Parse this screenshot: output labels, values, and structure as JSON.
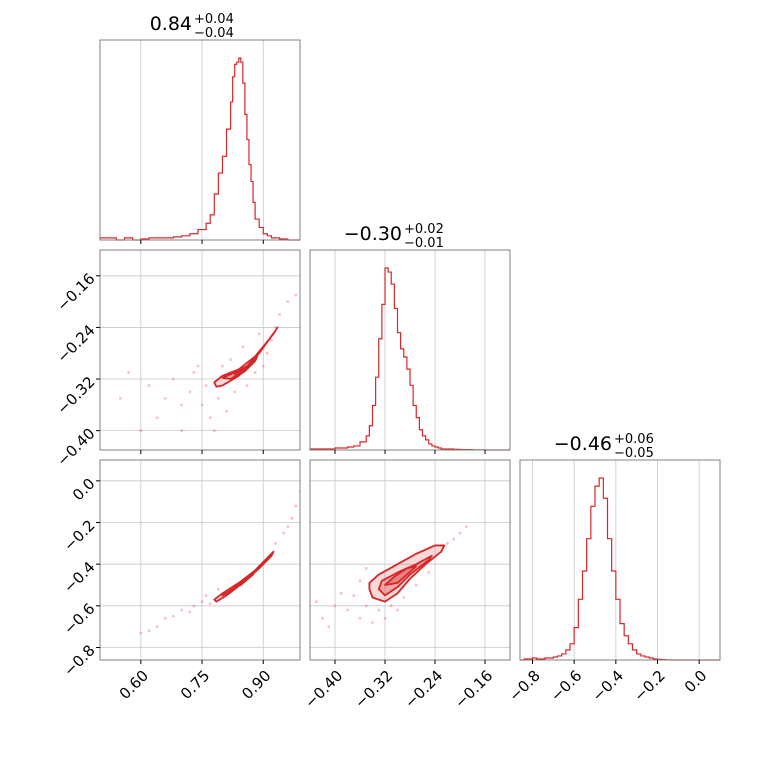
{
  "chart_data": {
    "type": "corner",
    "color": "#d62728",
    "parameters": [
      {
        "title": "0.84",
        "title_sup": "+0.04",
        "title_sub": "−0.04",
        "range": [
          0.5,
          0.99
        ],
        "ticks": [
          0.6,
          0.75,
          0.9
        ],
        "tick_labels": [
          "0.60",
          "0.75",
          "0.90"
        ],
        "histogram": {
          "bins": [
            0.5,
            0.52,
            0.54,
            0.56,
            0.58,
            0.6,
            0.62,
            0.64,
            0.66,
            0.68,
            0.7,
            0.72,
            0.74,
            0.76,
            0.77,
            0.78,
            0.79,
            0.8,
            0.81,
            0.82,
            0.825,
            0.83,
            0.835,
            0.84,
            0.845,
            0.85,
            0.855,
            0.86,
            0.865,
            0.87,
            0.875,
            0.88,
            0.89,
            0.9,
            0.91,
            0.92,
            0.94,
            0.96,
            0.99
          ],
          "counts": [
            0.01,
            0.01,
            0.0,
            0.01,
            0.0,
            0.005,
            0.01,
            0.01,
            0.01,
            0.015,
            0.02,
            0.03,
            0.05,
            0.08,
            0.12,
            0.22,
            0.32,
            0.4,
            0.53,
            0.66,
            0.78,
            0.84,
            0.85,
            0.87,
            0.85,
            0.75,
            0.6,
            0.48,
            0.36,
            0.28,
            0.18,
            0.1,
            0.06,
            0.03,
            0.02,
            0.01,
            0.005,
            0.0
          ]
        }
      },
      {
        "title": "−0.30",
        "title_sup": "+0.02",
        "title_sub": "−0.01",
        "range": [
          -0.44,
          -0.12
        ],
        "ticks": [
          -0.4,
          -0.32,
          -0.24,
          -0.16
        ],
        "tick_labels": [
          "−0.40",
          "−0.32",
          "−0.24",
          "−0.16"
        ],
        "histogram": {
          "bins": [
            -0.44,
            -0.43,
            -0.42,
            -0.41,
            -0.4,
            -0.39,
            -0.38,
            -0.37,
            -0.36,
            -0.35,
            -0.345,
            -0.34,
            -0.335,
            -0.33,
            -0.325,
            -0.32,
            -0.315,
            -0.31,
            -0.305,
            -0.3,
            -0.295,
            -0.29,
            -0.285,
            -0.28,
            -0.275,
            -0.27,
            -0.265,
            -0.26,
            -0.255,
            -0.25,
            -0.245,
            -0.24,
            -0.235,
            -0.23,
            -0.22,
            -0.21,
            -0.2,
            -0.18,
            -0.16,
            -0.12
          ],
          "counts": [
            0.005,
            0.005,
            0.005,
            0.005,
            0.01,
            0.01,
            0.015,
            0.02,
            0.04,
            0.07,
            0.12,
            0.22,
            0.36,
            0.55,
            0.72,
            0.9,
            0.88,
            0.82,
            0.7,
            0.58,
            0.5,
            0.46,
            0.4,
            0.32,
            0.22,
            0.16,
            0.1,
            0.07,
            0.05,
            0.03,
            0.02,
            0.015,
            0.01,
            0.005,
            0.005,
            0.003,
            0.002,
            0.001,
            0.0
          ]
        }
      },
      {
        "title": "−0.46",
        "title_sup": "+0.06",
        "title_sub": "−0.05",
        "range": [
          -0.86,
          0.1
        ],
        "ticks": [
          -0.8,
          -0.6,
          -0.4,
          -0.2,
          0.0
        ],
        "tick_labels": [
          "−0.8",
          "−0.6",
          "−0.4",
          "−0.2",
          "0.0"
        ],
        "histogram": {
          "bins": [
            -0.86,
            -0.84,
            -0.82,
            -0.8,
            -0.78,
            -0.76,
            -0.74,
            -0.72,
            -0.7,
            -0.68,
            -0.66,
            -0.64,
            -0.62,
            -0.6,
            -0.58,
            -0.56,
            -0.54,
            -0.52,
            -0.5,
            -0.48,
            -0.46,
            -0.44,
            -0.42,
            -0.4,
            -0.38,
            -0.36,
            -0.34,
            -0.32,
            -0.3,
            -0.28,
            -0.26,
            -0.24,
            -0.22,
            -0.2,
            -0.18,
            -0.16,
            -0.14,
            0.1
          ],
          "counts": [
            0.0,
            0.005,
            0.005,
            0.01,
            0.005,
            0.005,
            0.01,
            0.01,
            0.015,
            0.02,
            0.03,
            0.05,
            0.08,
            0.16,
            0.3,
            0.44,
            0.6,
            0.76,
            0.86,
            0.9,
            0.8,
            0.6,
            0.44,
            0.3,
            0.18,
            0.12,
            0.08,
            0.05,
            0.03,
            0.02,
            0.015,
            0.01,
            0.005,
            0.003,
            0.002,
            0.001,
            0.0
          ]
        }
      }
    ],
    "pairs": [
      {
        "row": 1,
        "col": 0,
        "ylim": [
          -0.43,
          -0.12
        ],
        "center": [
          0.845,
          -0.29
        ],
        "contours": [
          [
            [
              0.78,
              -0.325
            ],
            [
              0.8,
              -0.315
            ],
            [
              0.84,
              -0.305
            ],
            [
              0.88,
              -0.285
            ],
            [
              0.91,
              -0.262
            ],
            [
              0.93,
              -0.245
            ],
            [
              0.935,
              -0.24
            ],
            [
              0.925,
              -0.25
            ],
            [
              0.9,
              -0.27
            ],
            [
              0.87,
              -0.295
            ],
            [
              0.84,
              -0.315
            ],
            [
              0.8,
              -0.33
            ],
            [
              0.785,
              -0.332
            ]
          ],
          [
            [
              0.8,
              -0.318
            ],
            [
              0.83,
              -0.31
            ],
            [
              0.86,
              -0.3
            ],
            [
              0.89,
              -0.28
            ],
            [
              0.915,
              -0.258
            ],
            [
              0.91,
              -0.262
            ],
            [
              0.88,
              -0.288
            ],
            [
              0.85,
              -0.308
            ],
            [
              0.82,
              -0.32
            ]
          ],
          [
            [
              0.83,
              -0.312
            ],
            [
              0.86,
              -0.302
            ],
            [
              0.885,
              -0.285
            ],
            [
              0.88,
              -0.292
            ],
            [
              0.855,
              -0.308
            ],
            [
              0.835,
              -0.316
            ]
          ]
        ],
        "scatter": [
          [
            0.62,
            -0.33
          ],
          [
            0.66,
            -0.35
          ],
          [
            0.7,
            -0.36
          ],
          [
            0.72,
            -0.34
          ],
          [
            0.74,
            -0.3
          ],
          [
            0.76,
            -0.33
          ],
          [
            0.75,
            -0.36
          ],
          [
            0.77,
            -0.38
          ],
          [
            0.79,
            -0.35
          ],
          [
            0.8,
            -0.3
          ],
          [
            0.82,
            -0.29
          ],
          [
            0.83,
            -0.34
          ],
          [
            0.86,
            -0.33
          ],
          [
            0.88,
            -0.31
          ],
          [
            0.9,
            -0.3
          ],
          [
            0.92,
            -0.26
          ],
          [
            0.94,
            -0.22
          ],
          [
            0.96,
            -0.2
          ],
          [
            0.98,
            -0.19
          ],
          [
            0.7,
            -0.4
          ],
          [
            0.64,
            -0.38
          ],
          [
            0.6,
            -0.4
          ],
          [
            0.57,
            -0.31
          ],
          [
            0.55,
            -0.35
          ],
          [
            0.78,
            -0.4
          ],
          [
            0.81,
            -0.37
          ],
          [
            0.73,
            -0.31
          ],
          [
            0.68,
            -0.32
          ],
          [
            0.85,
            -0.27
          ],
          [
            0.89,
            -0.25
          ],
          [
            0.91,
            -0.28
          ],
          [
            0.93,
            -0.24
          ]
        ]
      },
      {
        "row": 2,
        "col": 0,
        "ylim": [
          -0.86,
          0.1
        ],
        "center": [
          0.845,
          -0.46
        ],
        "contours": [
          [
            [
              0.78,
              -0.57
            ],
            [
              0.8,
              -0.54
            ],
            [
              0.84,
              -0.49
            ],
            [
              0.88,
              -0.43
            ],
            [
              0.91,
              -0.37
            ],
            [
              0.925,
              -0.34
            ],
            [
              0.92,
              -0.36
            ],
            [
              0.89,
              -0.42
            ],
            [
              0.85,
              -0.49
            ],
            [
              0.81,
              -0.55
            ],
            [
              0.785,
              -0.58
            ]
          ],
          [
            [
              0.8,
              -0.55
            ],
            [
              0.84,
              -0.5
            ],
            [
              0.87,
              -0.45
            ],
            [
              0.9,
              -0.39
            ],
            [
              0.895,
              -0.41
            ],
            [
              0.86,
              -0.47
            ],
            [
              0.82,
              -0.53
            ]
          ],
          [
            [
              0.83,
              -0.51
            ],
            [
              0.86,
              -0.47
            ],
            [
              0.88,
              -0.43
            ],
            [
              0.875,
              -0.45
            ],
            [
              0.845,
              -0.5
            ]
          ]
        ],
        "scatter": [
          [
            0.6,
            -0.73
          ],
          [
            0.62,
            -0.72
          ],
          [
            0.66,
            -0.66
          ],
          [
            0.7,
            -0.62
          ],
          [
            0.73,
            -0.6
          ],
          [
            0.75,
            -0.58
          ],
          [
            0.77,
            -0.59
          ],
          [
            0.93,
            -0.3
          ],
          [
            0.95,
            -0.25
          ],
          [
            0.97,
            -0.18
          ],
          [
            0.98,
            -0.12
          ],
          [
            0.99,
            -0.05
          ],
          [
            0.96,
            -0.22
          ],
          [
            0.72,
            -0.63
          ],
          [
            0.68,
            -0.65
          ],
          [
            0.64,
            -0.7
          ],
          [
            0.76,
            -0.55
          ],
          [
            0.79,
            -0.52
          ]
        ]
      },
      {
        "row": 2,
        "col": 1,
        "ylim": [
          -0.86,
          0.1
        ],
        "center": [
          -0.3,
          -0.46
        ],
        "contours": [
          [
            [
              -0.345,
              -0.52
            ],
            [
              -0.34,
              -0.56
            ],
            [
              -0.32,
              -0.58
            ],
            [
              -0.3,
              -0.54
            ],
            [
              -0.28,
              -0.47
            ],
            [
              -0.255,
              -0.4
            ],
            [
              -0.23,
              -0.34
            ],
            [
              -0.225,
              -0.31
            ],
            [
              -0.24,
              -0.31
            ],
            [
              -0.27,
              -0.35
            ],
            [
              -0.3,
              -0.4
            ],
            [
              -0.33,
              -0.45
            ],
            [
              -0.345,
              -0.49
            ]
          ],
          [
            [
              -0.33,
              -0.52
            ],
            [
              -0.32,
              -0.55
            ],
            [
              -0.3,
              -0.51
            ],
            [
              -0.28,
              -0.45
            ],
            [
              -0.25,
              -0.38
            ],
            [
              -0.245,
              -0.36
            ],
            [
              -0.27,
              -0.4
            ],
            [
              -0.3,
              -0.44
            ],
            [
              -0.325,
              -0.48
            ]
          ],
          [
            [
              -0.32,
              -0.5
            ],
            [
              -0.3,
              -0.49
            ],
            [
              -0.285,
              -0.45
            ],
            [
              -0.27,
              -0.41
            ],
            [
              -0.285,
              -0.42
            ],
            [
              -0.305,
              -0.46
            ]
          ]
        ],
        "scatter": [
          [
            -0.4,
            -0.6
          ],
          [
            -0.42,
            -0.66
          ],
          [
            -0.38,
            -0.62
          ],
          [
            -0.37,
            -0.55
          ],
          [
            -0.36,
            -0.66
          ],
          [
            -0.35,
            -0.6
          ],
          [
            -0.34,
            -0.68
          ],
          [
            -0.33,
            -0.62
          ],
          [
            -0.31,
            -0.6
          ],
          [
            -0.29,
            -0.56
          ],
          [
            -0.27,
            -0.5
          ],
          [
            -0.25,
            -0.44
          ],
          [
            -0.22,
            -0.3
          ],
          [
            -0.2,
            -0.25
          ],
          [
            -0.19,
            -0.22
          ],
          [
            -0.21,
            -0.28
          ],
          [
            -0.36,
            -0.48
          ],
          [
            -0.39,
            -0.54
          ],
          [
            -0.35,
            -0.42
          ],
          [
            -0.3,
            -0.62
          ],
          [
            -0.32,
            -0.66
          ],
          [
            -0.41,
            -0.7
          ],
          [
            -0.43,
            -0.58
          ]
        ]
      }
    ]
  }
}
